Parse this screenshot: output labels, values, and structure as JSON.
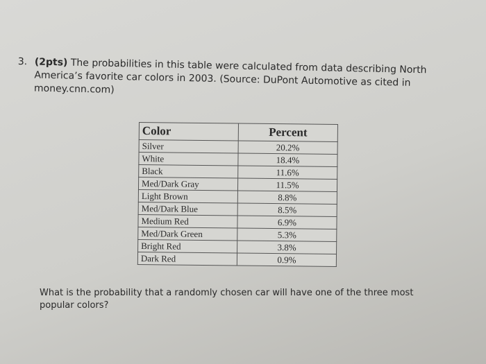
{
  "question": {
    "number": "3.",
    "points": "(2pts)",
    "text": "The probabilities in this table were calculated from data describing North America’s favorite car colors in 2003. (Source: DuPont Automotive as cited in money.cnn.com)"
  },
  "table": {
    "header": [
      "Color",
      "Percent"
    ],
    "rows": [
      [
        "Silver",
        "20.2%"
      ],
      [
        "White",
        "18.4%"
      ],
      [
        "Black",
        "11.6%"
      ],
      [
        "Med/Dark Gray",
        "11.5%"
      ],
      [
        "Light Brown",
        "8.8%"
      ],
      [
        "Med/Dark Blue",
        "8.5%"
      ],
      [
        "Medium Red",
        "6.9%"
      ],
      [
        "Med/Dark Green",
        "5.3%"
      ],
      [
        "Bright Red",
        "3.8%"
      ],
      [
        "Dark Red",
        "0.9%"
      ]
    ]
  },
  "followup": "What is the probability that a randomly chosen car will have one of the three most popular colors?"
}
